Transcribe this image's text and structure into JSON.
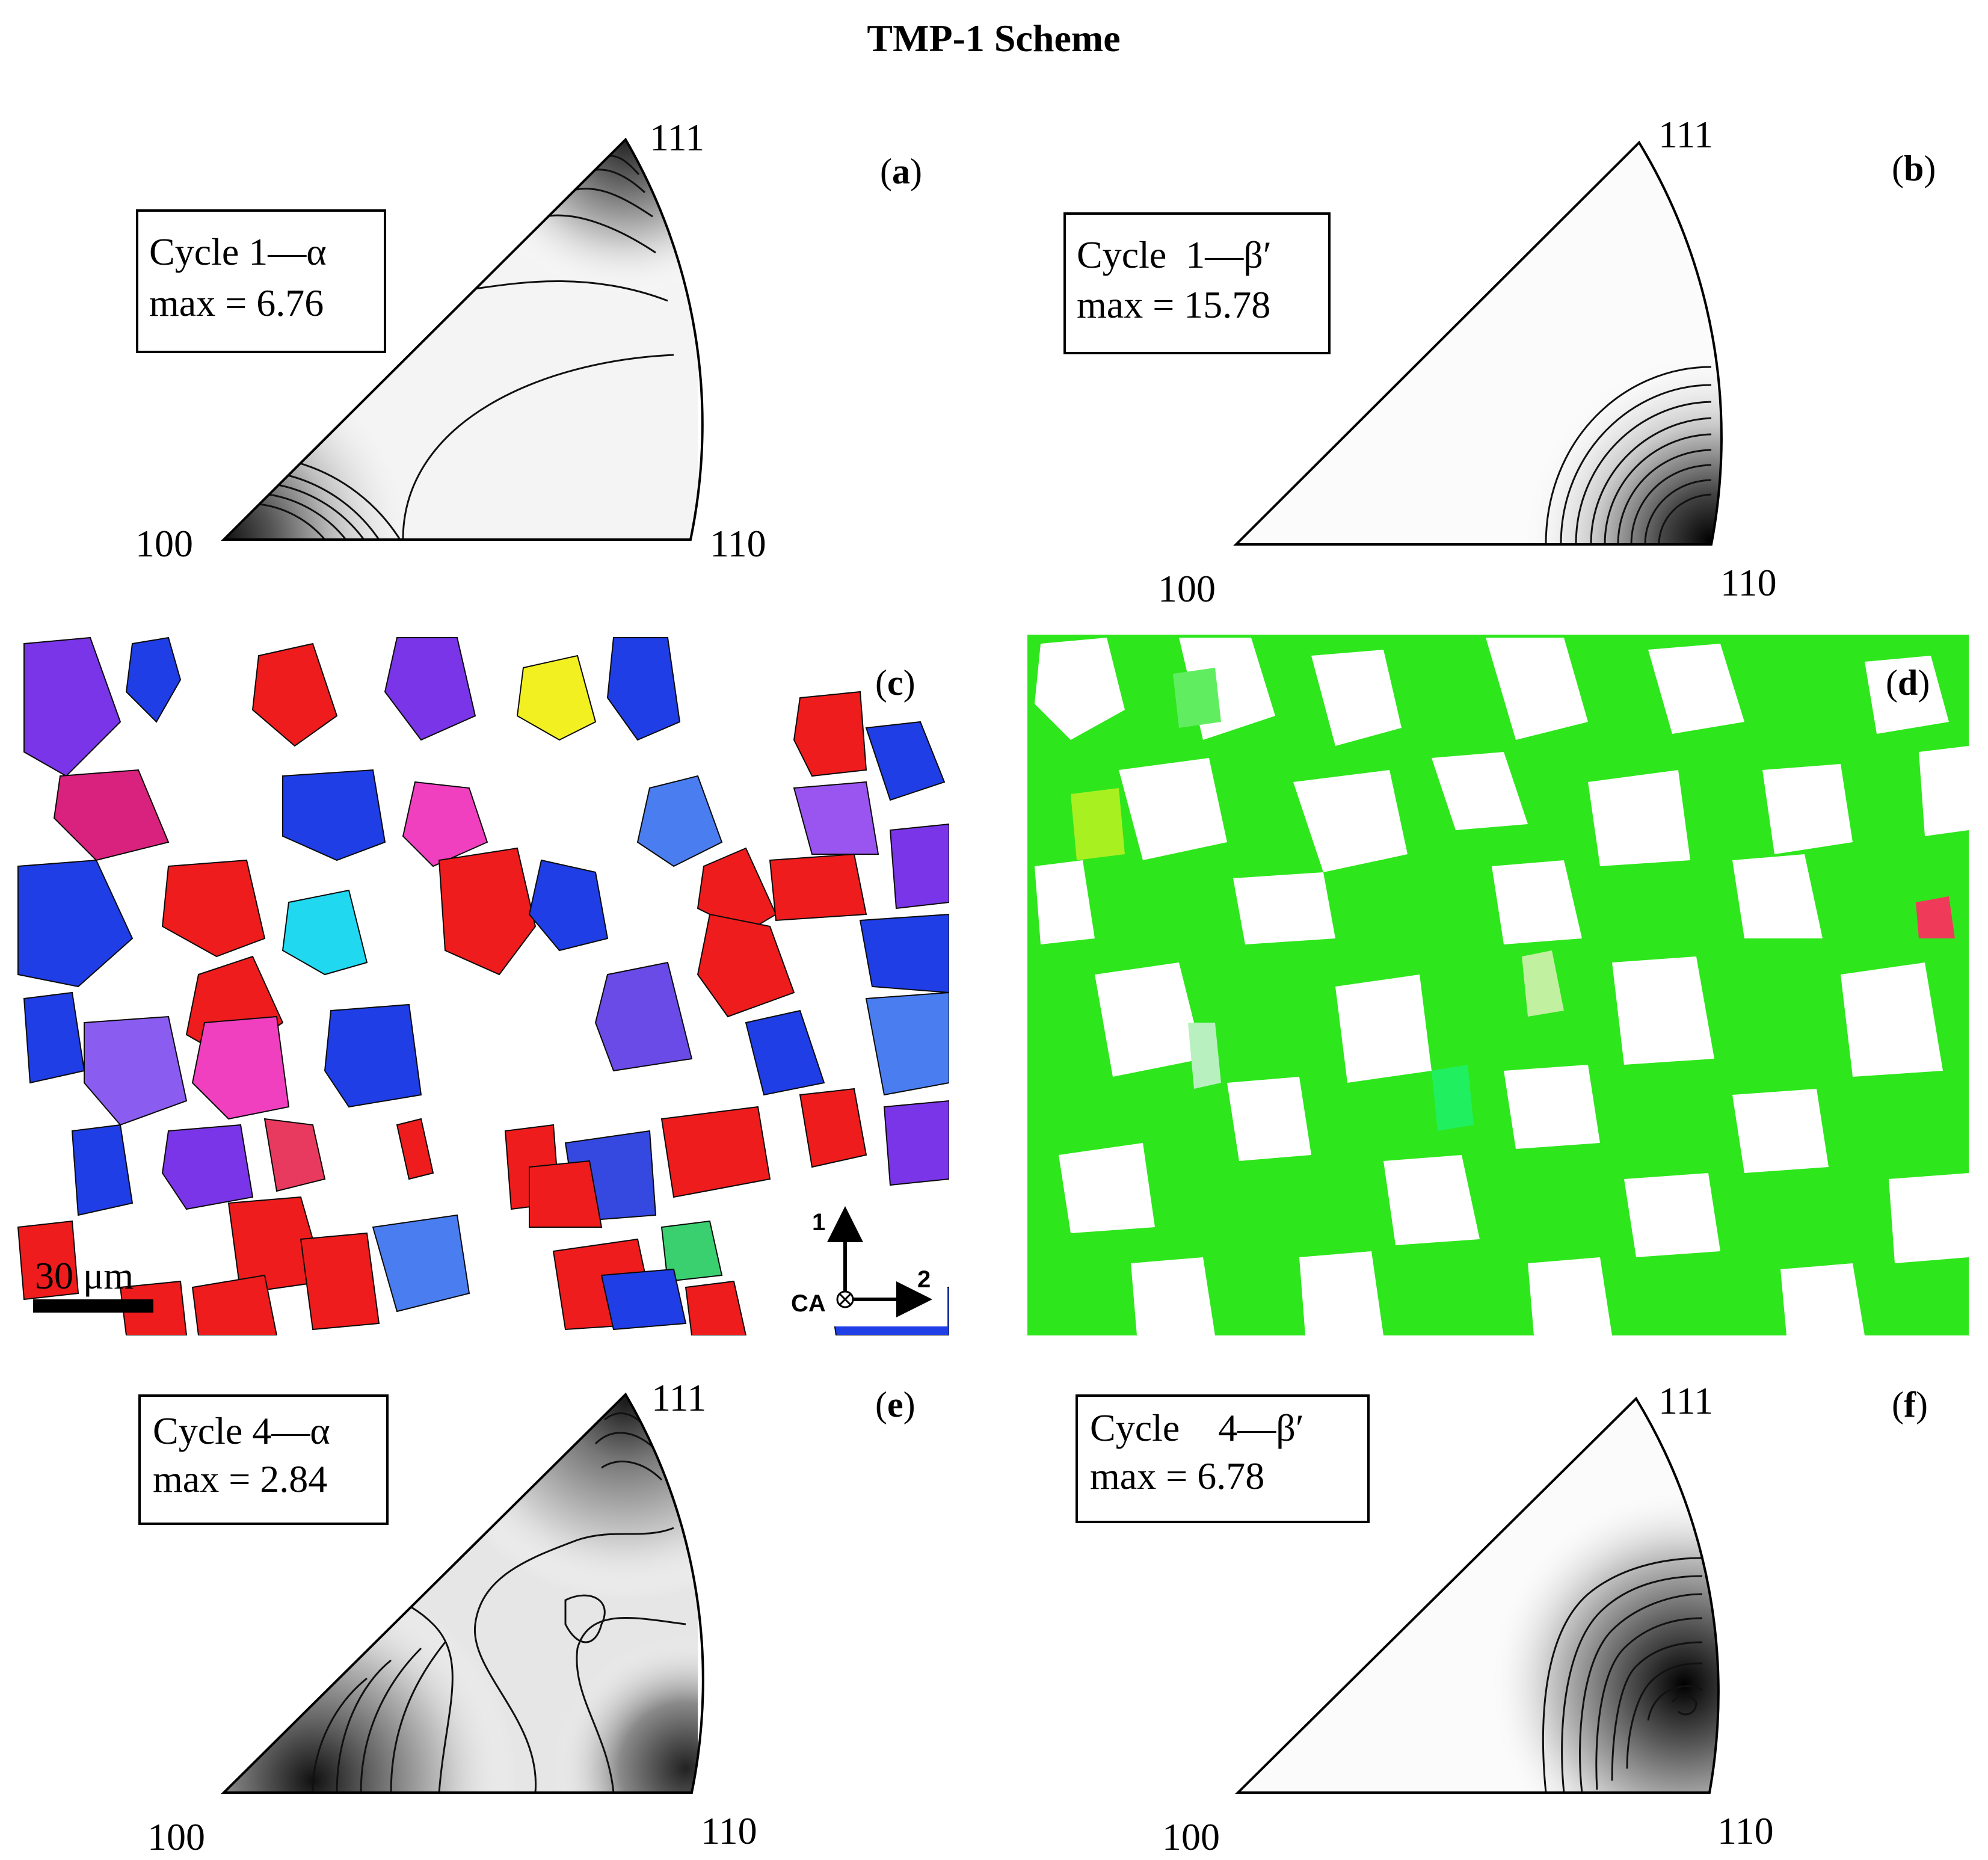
{
  "figure": {
    "title": "TMP-1 Scheme"
  },
  "panels": {
    "a": {
      "label_open": "(",
      "label_letter": "a",
      "label_close": ")",
      "box_line1": "Cycle 1—α",
      "box_line2": "max = 6.76",
      "corner_111": "111",
      "corner_100": "100",
      "corner_110": "110",
      "peak_location": "100 and 111 corners",
      "max_value": 6.76
    },
    "b": {
      "label_open": "(",
      "label_letter": "b",
      "label_close": ")",
      "box_line1": "Cycle  1—β′",
      "box_line2": "max = 15.78",
      "corner_111": "111",
      "corner_100": "100",
      "corner_110": "110",
      "peak_location": "110 corner",
      "max_value": 15.78
    },
    "c": {
      "label_open": "(",
      "label_letter": "c",
      "label_close": ")",
      "scale_bar": "30 μm",
      "axis_1": "1",
      "axis_2": "2",
      "axis_ca": "CA"
    },
    "d": {
      "label_open": "(",
      "label_letter": "d",
      "label_close": ")"
    },
    "e": {
      "label_open": "(",
      "label_letter": "e",
      "label_close": ")",
      "box_line1": "Cycle 4—α",
      "box_line2": "max = 2.84",
      "corner_111": "111",
      "corner_100": "100",
      "corner_110": "110",
      "peak_location": "100 and 111 corners",
      "max_value": 2.84
    },
    "f": {
      "label_open": "(",
      "label_letter": "f",
      "label_close": ")",
      "box_line1": "Cycle    4—β′",
      "box_line2": "max = 6.78",
      "corner_111": "111",
      "corner_100": "100",
      "corner_110": "110",
      "peak_location": "near 110 corner",
      "max_value": 6.78
    }
  },
  "colors": {
    "ipf_red_100": "#ee1c1c",
    "ipf_green_110": "#22ee11",
    "ipf_blue_111": "#1f3ee6",
    "ipf_violet": "#7a35e8",
    "ipf_pink": "#f040c0",
    "ipf_cyan": "#20d8f0",
    "ipf_yellow": "#f2f020",
    "contour": "#111111"
  }
}
